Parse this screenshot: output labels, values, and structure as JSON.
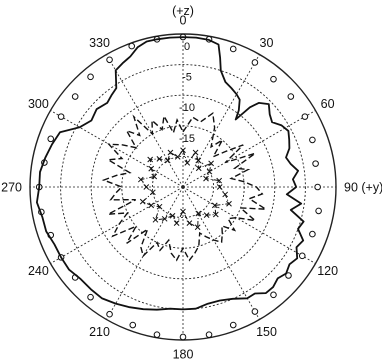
{
  "chart_data": {
    "type": "polar",
    "angle_labels": [
      {
        "deg": 0,
        "text": "0"
      },
      {
        "deg": 30,
        "text": "30"
      },
      {
        "deg": 60,
        "text": "60"
      },
      {
        "deg": 90,
        "text": "90 (+y)"
      },
      {
        "deg": 120,
        "text": "120"
      },
      {
        "deg": 150,
        "text": "150"
      },
      {
        "deg": 180,
        "text": "180"
      },
      {
        "deg": 210,
        "text": "210"
      },
      {
        "deg": 240,
        "text": "240"
      },
      {
        "deg": 270,
        "text": "270"
      },
      {
        "deg": 300,
        "text": "300"
      },
      {
        "deg": 330,
        "text": "330"
      }
    ],
    "top_label": "(+z)",
    "radial_ticks": [
      {
        "value": 0,
        "text": "0"
      },
      {
        "value": -5,
        "text": "-5"
      },
      {
        "value": -10,
        "text": "-10"
      },
      {
        "value": -15,
        "text": "-15"
      }
    ],
    "r_range": [
      -25,
      0
    ],
    "rings": [
      0,
      -5,
      -10,
      -15,
      -20
    ],
    "series": [
      {
        "style": "open-circles",
        "points": [
          [
            0,
            -0.5
          ],
          [
            10,
            -0.5
          ],
          [
            20,
            -1
          ],
          [
            30,
            -1.5
          ],
          [
            40,
            -2
          ],
          [
            50,
            -2
          ],
          [
            60,
            -2
          ],
          [
            70,
            -2.5
          ],
          [
            80,
            -3
          ],
          [
            90,
            -3
          ],
          [
            100,
            -2.5
          ],
          [
            110,
            -2.5
          ],
          [
            120,
            -2.5
          ],
          [
            130,
            -2.5
          ],
          [
            140,
            -2
          ],
          [
            150,
            -1.5
          ],
          [
            160,
            -1
          ],
          [
            170,
            -0.5
          ],
          [
            180,
            -0.5
          ],
          [
            190,
            -0.5
          ],
          [
            200,
            -1
          ],
          [
            210,
            -1
          ],
          [
            220,
            -1.5
          ],
          [
            230,
            -2
          ],
          [
            240,
            -2
          ],
          [
            250,
            -2
          ],
          [
            260,
            -1.5
          ],
          [
            270,
            -1.5
          ],
          [
            280,
            -2
          ],
          [
            290,
            -2
          ],
          [
            300,
            -2
          ],
          [
            310,
            -2
          ],
          [
            320,
            -1.5
          ],
          [
            330,
            -1
          ],
          [
            340,
            -0.5
          ],
          [
            350,
            -0.5
          ]
        ]
      },
      {
        "style": "solid",
        "points": [
          [
            0,
            -0.5
          ],
          [
            5,
            -0.5
          ],
          [
            10,
            -0.6
          ],
          [
            14,
            -1
          ],
          [
            16,
            -3
          ],
          [
            18,
            -5
          ],
          [
            22,
            -6.5
          ],
          [
            26,
            -7
          ],
          [
            30,
            -7.5
          ],
          [
            33,
            -8
          ],
          [
            36,
            -9.5
          ],
          [
            38,
            -11
          ],
          [
            40,
            -8
          ],
          [
            42,
            -6.5
          ],
          [
            46,
            -5.5
          ],
          [
            50,
            -6.5
          ],
          [
            54,
            -7
          ],
          [
            58,
            -6
          ],
          [
            62,
            -5.5
          ],
          [
            66,
            -6
          ],
          [
            70,
            -6.5
          ],
          [
            74,
            -7.5
          ],
          [
            78,
            -7
          ],
          [
            82,
            -6
          ],
          [
            86,
            -7
          ],
          [
            90,
            -6.5
          ],
          [
            94,
            -8
          ],
          [
            98,
            -5.5
          ],
          [
            102,
            -7
          ],
          [
            106,
            -4.5
          ],
          [
            110,
            -5
          ],
          [
            114,
            -3.5
          ],
          [
            118,
            -4
          ],
          [
            122,
            -3
          ],
          [
            126,
            -3.5
          ],
          [
            130,
            -3
          ],
          [
            134,
            -3.5
          ],
          [
            138,
            -3
          ],
          [
            142,
            -3
          ],
          [
            146,
            -4
          ],
          [
            150,
            -4
          ],
          [
            156,
            -5
          ],
          [
            162,
            -5.5
          ],
          [
            168,
            -5.5
          ],
          [
            174,
            -5
          ],
          [
            180,
            -5
          ],
          [
            186,
            -5
          ],
          [
            192,
            -4.5
          ],
          [
            198,
            -4
          ],
          [
            204,
            -3.5
          ],
          [
            210,
            -3
          ],
          [
            216,
            -2.5
          ],
          [
            222,
            -2.5
          ],
          [
            228,
            -2.5
          ],
          [
            234,
            -2
          ],
          [
            240,
            -2
          ],
          [
            246,
            -2
          ],
          [
            252,
            -1.5
          ],
          [
            258,
            -1.5
          ],
          [
            264,
            -1
          ],
          [
            270,
            -1.5
          ],
          [
            276,
            -1.5
          ],
          [
            282,
            -2
          ],
          [
            288,
            -2.5
          ],
          [
            294,
            -3
          ],
          [
            300,
            -5.5
          ],
          [
            306,
            -6.5
          ],
          [
            312,
            -6
          ],
          [
            318,
            -6.5
          ],
          [
            322,
            -6
          ],
          [
            326,
            -5.5
          ],
          [
            330,
            -3
          ],
          [
            334,
            -2.5
          ],
          [
            338,
            -2
          ],
          [
            342,
            -1
          ],
          [
            346,
            -0.5
          ],
          [
            350,
            -0.5
          ],
          [
            355,
            -0.5
          ]
        ]
      },
      {
        "style": "dashed",
        "points": [
          [
            0,
            -16
          ],
          [
            8,
            -13.5
          ],
          [
            15,
            -14
          ],
          [
            22,
            -12
          ],
          [
            28,
            -14
          ],
          [
            35,
            -17
          ],
          [
            40,
            -15
          ],
          [
            45,
            -18
          ],
          [
            50,
            -16
          ],
          [
            55,
            -13
          ],
          [
            60,
            -17
          ],
          [
            65,
            -12
          ],
          [
            70,
            -16
          ],
          [
            75,
            -14
          ],
          [
            80,
            -17
          ],
          [
            85,
            -15
          ],
          [
            90,
            -13
          ],
          [
            95,
            -12
          ],
          [
            100,
            -14
          ],
          [
            105,
            -11
          ],
          [
            110,
            -15
          ],
          [
            115,
            -12
          ],
          [
            120,
            -15
          ],
          [
            125,
            -16
          ],
          [
            130,
            -14
          ],
          [
            135,
            -16
          ],
          [
            140,
            -15
          ],
          [
            145,
            -14
          ],
          [
            150,
            -15
          ],
          [
            155,
            -16
          ],
          [
            160,
            -17
          ],
          [
            165,
            -15
          ],
          [
            170,
            -14
          ],
          [
            175,
            -13
          ],
          [
            180,
            -15
          ],
          [
            185,
            -13
          ],
          [
            190,
            -14
          ],
          [
            195,
            -16
          ],
          [
            200,
            -14
          ],
          [
            205,
            -15
          ],
          [
            210,
            -12
          ],
          [
            215,
            -13
          ],
          [
            220,
            -16
          ],
          [
            225,
            -12
          ],
          [
            230,
            -15
          ],
          [
            235,
            -11
          ],
          [
            240,
            -13
          ],
          [
            245,
            -15
          ],
          [
            250,
            -12
          ],
          [
            255,
            -17
          ],
          [
            260,
            -13
          ],
          [
            265,
            -14
          ],
          [
            270,
            -15
          ],
          [
            275,
            -12
          ],
          [
            280,
            -14
          ],
          [
            285,
            -16
          ],
          [
            290,
            -12
          ],
          [
            295,
            -14
          ],
          [
            300,
            -11
          ],
          [
            305,
            -13
          ],
          [
            310,
            -15
          ],
          [
            315,
            -12
          ],
          [
            320,
            -14
          ],
          [
            325,
            -11
          ],
          [
            330,
            -15
          ],
          [
            335,
            -13
          ],
          [
            340,
            -15
          ],
          [
            345,
            -13
          ],
          [
            350,
            -16
          ],
          [
            355,
            -14
          ]
        ]
      },
      {
        "style": "x-dashdot",
        "points": [
          [
            0,
            -19
          ],
          [
            10,
            -21
          ],
          [
            20,
            -19
          ],
          [
            30,
            -20
          ],
          [
            40,
            -21
          ],
          [
            50,
            -19
          ],
          [
            60,
            -20
          ],
          [
            70,
            -21
          ],
          [
            80,
            -19
          ],
          [
            90,
            -19
          ],
          [
            100,
            -18
          ],
          [
            110,
            -17
          ],
          [
            120,
            -19
          ],
          [
            130,
            -18
          ],
          [
            140,
            -19
          ],
          [
            150,
            -20
          ],
          [
            160,
            -18
          ],
          [
            170,
            -19
          ],
          [
            180,
            -21
          ],
          [
            190,
            -19
          ],
          [
            200,
            -20
          ],
          [
            210,
            -19
          ],
          [
            220,
            -18
          ],
          [
            230,
            -20
          ],
          [
            240,
            -19
          ],
          [
            250,
            -18
          ],
          [
            260,
            -20
          ],
          [
            270,
            -19
          ],
          [
            280,
            -18
          ],
          [
            290,
            -20
          ],
          [
            300,
            -19
          ],
          [
            310,
            -18
          ],
          [
            320,
            -19
          ],
          [
            330,
            -20
          ],
          [
            340,
            -19
          ],
          [
            350,
            -20
          ]
        ]
      }
    ]
  }
}
